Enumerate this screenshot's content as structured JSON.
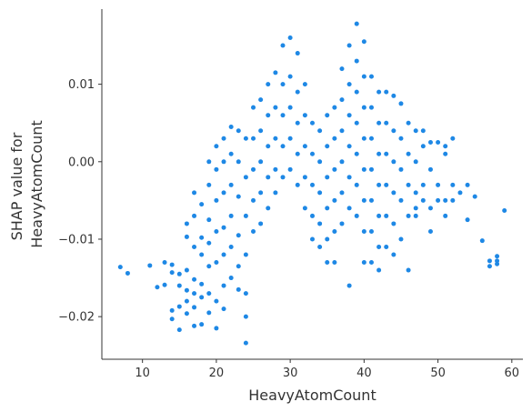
{
  "chart_data": {
    "type": "scatter",
    "xlabel": "HeavyAtomCount",
    "ylabel_lines": [
      "SHAP value for",
      "HeavyAtomCount"
    ],
    "xlim": [
      4.5,
      61.5
    ],
    "ylim": [
      -0.0255,
      0.0197
    ],
    "xticks": [
      10,
      20,
      30,
      40,
      50,
      60
    ],
    "xtick_labels": [
      "10",
      "20",
      "30",
      "40",
      "50",
      "60"
    ],
    "yticks": [
      -0.02,
      -0.01,
      0.0,
      0.01
    ],
    "ytick_labels": [
      "−0.02",
      "−0.01",
      "0.00",
      "0.01"
    ],
    "grid": false,
    "point_color": "#1E88E5",
    "points": [
      [
        7,
        -0.0136
      ],
      [
        8,
        -0.0144
      ],
      [
        11,
        -0.0134
      ],
      [
        12,
        -0.0162
      ],
      [
        13,
        -0.013
      ],
      [
        13,
        -0.0159
      ],
      [
        14,
        -0.0133
      ],
      [
        14,
        -0.0143
      ],
      [
        14,
        -0.0192
      ],
      [
        14,
        -0.0203
      ],
      [
        15,
        -0.0145
      ],
      [
        15,
        -0.016
      ],
      [
        15,
        -0.0187
      ],
      [
        15,
        -0.0217
      ],
      [
        16,
        -0.008
      ],
      [
        16,
        -0.0097
      ],
      [
        16,
        -0.014
      ],
      [
        16,
        -0.0166
      ],
      [
        16,
        -0.018
      ],
      [
        16,
        -0.0196
      ],
      [
        17,
        -0.004
      ],
      [
        17,
        -0.007
      ],
      [
        17,
        -0.011
      ],
      [
        17,
        -0.0152
      ],
      [
        17,
        -0.017
      ],
      [
        17,
        -0.0188
      ],
      [
        17,
        -0.0212
      ],
      [
        18,
        -0.0055
      ],
      [
        18,
        -0.0098
      ],
      [
        18,
        -0.012
      ],
      [
        18,
        -0.0158
      ],
      [
        18,
        -0.0175
      ],
      [
        18,
        -0.021
      ],
      [
        19,
        0.0
      ],
      [
        19,
        -0.003
      ],
      [
        19,
        -0.0075
      ],
      [
        19,
        -0.0105
      ],
      [
        19,
        -0.0135
      ],
      [
        19,
        -0.017
      ],
      [
        19,
        -0.0195
      ],
      [
        20,
        0.002
      ],
      [
        20,
        -0.001
      ],
      [
        20,
        -0.005
      ],
      [
        20,
        -0.009
      ],
      [
        20,
        -0.013
      ],
      [
        20,
        -0.018
      ],
      [
        20,
        -0.0215
      ],
      [
        21,
        0.003
      ],
      [
        21,
        0.0
      ],
      [
        21,
        -0.004
      ],
      [
        21,
        -0.0085
      ],
      [
        21,
        -0.012
      ],
      [
        21,
        -0.016
      ],
      [
        21,
        -0.019
      ],
      [
        22,
        0.0045
      ],
      [
        22,
        0.001
      ],
      [
        22,
        -0.003
      ],
      [
        22,
        -0.007
      ],
      [
        22,
        -0.011
      ],
      [
        22,
        -0.015
      ],
      [
        23,
        0.004
      ],
      [
        23,
        0.0
      ],
      [
        23,
        -0.0045
      ],
      [
        23,
        -0.0095
      ],
      [
        23,
        -0.0135
      ],
      [
        23,
        -0.0165
      ],
      [
        24,
        0.003
      ],
      [
        24,
        -0.002
      ],
      [
        24,
        -0.007
      ],
      [
        24,
        -0.012
      ],
      [
        24,
        -0.017
      ],
      [
        24,
        -0.02
      ],
      [
        24,
        -0.0234
      ],
      [
        25,
        0.007
      ],
      [
        25,
        0.003
      ],
      [
        25,
        -0.001
      ],
      [
        25,
        -0.005
      ],
      [
        25,
        -0.009
      ],
      [
        26,
        0.008
      ],
      [
        26,
        0.004
      ],
      [
        26,
        0.0
      ],
      [
        26,
        -0.004
      ],
      [
        26,
        -0.008
      ],
      [
        27,
        0.01
      ],
      [
        27,
        0.006
      ],
      [
        27,
        0.002
      ],
      [
        27,
        -0.002
      ],
      [
        27,
        -0.006
      ],
      [
        28,
        0.0115
      ],
      [
        28,
        0.007
      ],
      [
        28,
        0.003
      ],
      [
        28,
        -0.001
      ],
      [
        28,
        -0.004
      ],
      [
        29,
        0.015
      ],
      [
        29,
        0.01
      ],
      [
        29,
        0.006
      ],
      [
        29,
        0.002
      ],
      [
        29,
        -0.002
      ],
      [
        30,
        0.016
      ],
      [
        30,
        0.011
      ],
      [
        30,
        0.007
      ],
      [
        30,
        0.003
      ],
      [
        30,
        -0.001
      ],
      [
        31,
        0.014
      ],
      [
        31,
        0.009
      ],
      [
        31,
        0.005
      ],
      [
        31,
        0.001
      ],
      [
        31,
        -0.003
      ],
      [
        32,
        0.01
      ],
      [
        32,
        0.006
      ],
      [
        32,
        0.002
      ],
      [
        32,
        -0.002
      ],
      [
        32,
        -0.006
      ],
      [
        33,
        0.005
      ],
      [
        33,
        0.001
      ],
      [
        33,
        -0.003
      ],
      [
        33,
        -0.007
      ],
      [
        33,
        -0.01
      ],
      [
        34,
        0.004
      ],
      [
        34,
        0.0
      ],
      [
        34,
        -0.004
      ],
      [
        34,
        -0.008
      ],
      [
        34,
        -0.011
      ],
      [
        35,
        0.006
      ],
      [
        35,
        0.002
      ],
      [
        35,
        -0.002
      ],
      [
        35,
        -0.006
      ],
      [
        35,
        -0.01
      ],
      [
        35,
        -0.013
      ],
      [
        36,
        0.007
      ],
      [
        36,
        0.003
      ],
      [
        36,
        -0.001
      ],
      [
        36,
        -0.005
      ],
      [
        36,
        -0.009
      ],
      [
        36,
        -0.013
      ],
      [
        37,
        0.012
      ],
      [
        37,
        0.008
      ],
      [
        37,
        0.004
      ],
      [
        37,
        0.0
      ],
      [
        37,
        -0.004
      ],
      [
        37,
        -0.008
      ],
      [
        38,
        0.015
      ],
      [
        38,
        0.01
      ],
      [
        38,
        0.006
      ],
      [
        38,
        0.002
      ],
      [
        38,
        -0.002
      ],
      [
        38,
        -0.006
      ],
      [
        38,
        -0.016
      ],
      [
        39,
        0.0178
      ],
      [
        39,
        0.013
      ],
      [
        39,
        0.009
      ],
      [
        39,
        0.005
      ],
      [
        39,
        0.001
      ],
      [
        39,
        -0.003
      ],
      [
        39,
        -0.007
      ],
      [
        40,
        0.0155
      ],
      [
        40,
        0.011
      ],
      [
        40,
        0.007
      ],
      [
        40,
        0.003
      ],
      [
        40,
        -0.001
      ],
      [
        40,
        -0.005
      ],
      [
        40,
        -0.009
      ],
      [
        40,
        -0.013
      ],
      [
        41,
        0.011
      ],
      [
        41,
        0.007
      ],
      [
        41,
        0.003
      ],
      [
        41,
        -0.001
      ],
      [
        41,
        -0.005
      ],
      [
        41,
        -0.009
      ],
      [
        41,
        -0.013
      ],
      [
        42,
        0.009
      ],
      [
        42,
        0.005
      ],
      [
        42,
        0.001
      ],
      [
        42,
        -0.003
      ],
      [
        42,
        -0.007
      ],
      [
        42,
        -0.011
      ],
      [
        42,
        -0.014
      ],
      [
        43,
        0.009
      ],
      [
        43,
        0.005
      ],
      [
        43,
        0.001
      ],
      [
        43,
        -0.003
      ],
      [
        43,
        -0.007
      ],
      [
        43,
        -0.011
      ],
      [
        44,
        0.0085
      ],
      [
        44,
        0.004
      ],
      [
        44,
        0.0
      ],
      [
        44,
        -0.004
      ],
      [
        44,
        -0.008
      ],
      [
        44,
        -0.012
      ],
      [
        45,
        0.0075
      ],
      [
        45,
        0.003
      ],
      [
        45,
        -0.001
      ],
      [
        45,
        -0.005
      ],
      [
        45,
        -0.01
      ],
      [
        46,
        0.005
      ],
      [
        46,
        0.001
      ],
      [
        46,
        -0.003
      ],
      [
        46,
        -0.007
      ],
      [
        46,
        -0.014
      ],
      [
        47,
        0.004
      ],
      [
        47,
        0.0
      ],
      [
        47,
        -0.004
      ],
      [
        47,
        -0.006
      ],
      [
        47,
        -0.007
      ],
      [
        48,
        0.004
      ],
      [
        48,
        0.002
      ],
      [
        48,
        -0.003
      ],
      [
        48,
        -0.005
      ],
      [
        49,
        0.0025
      ],
      [
        49,
        -0.001
      ],
      [
        49,
        -0.006
      ],
      [
        49,
        -0.009
      ],
      [
        50,
        0.0025
      ],
      [
        50,
        -0.003
      ],
      [
        50,
        -0.005
      ],
      [
        51,
        0.002
      ],
      [
        51,
        0.001
      ],
      [
        51,
        -0.005
      ],
      [
        51,
        -0.007
      ],
      [
        52,
        0.003
      ],
      [
        52,
        -0.003
      ],
      [
        52,
        -0.005
      ],
      [
        53,
        -0.004
      ],
      [
        54,
        -0.003
      ],
      [
        54,
        -0.0075
      ],
      [
        55,
        -0.0045
      ],
      [
        56,
        -0.0102
      ],
      [
        57,
        -0.0128
      ],
      [
        57,
        -0.0135
      ],
      [
        58,
        -0.0122
      ],
      [
        58,
        -0.0128
      ],
      [
        58,
        -0.0132
      ],
      [
        59,
        -0.0063
      ]
    ]
  }
}
